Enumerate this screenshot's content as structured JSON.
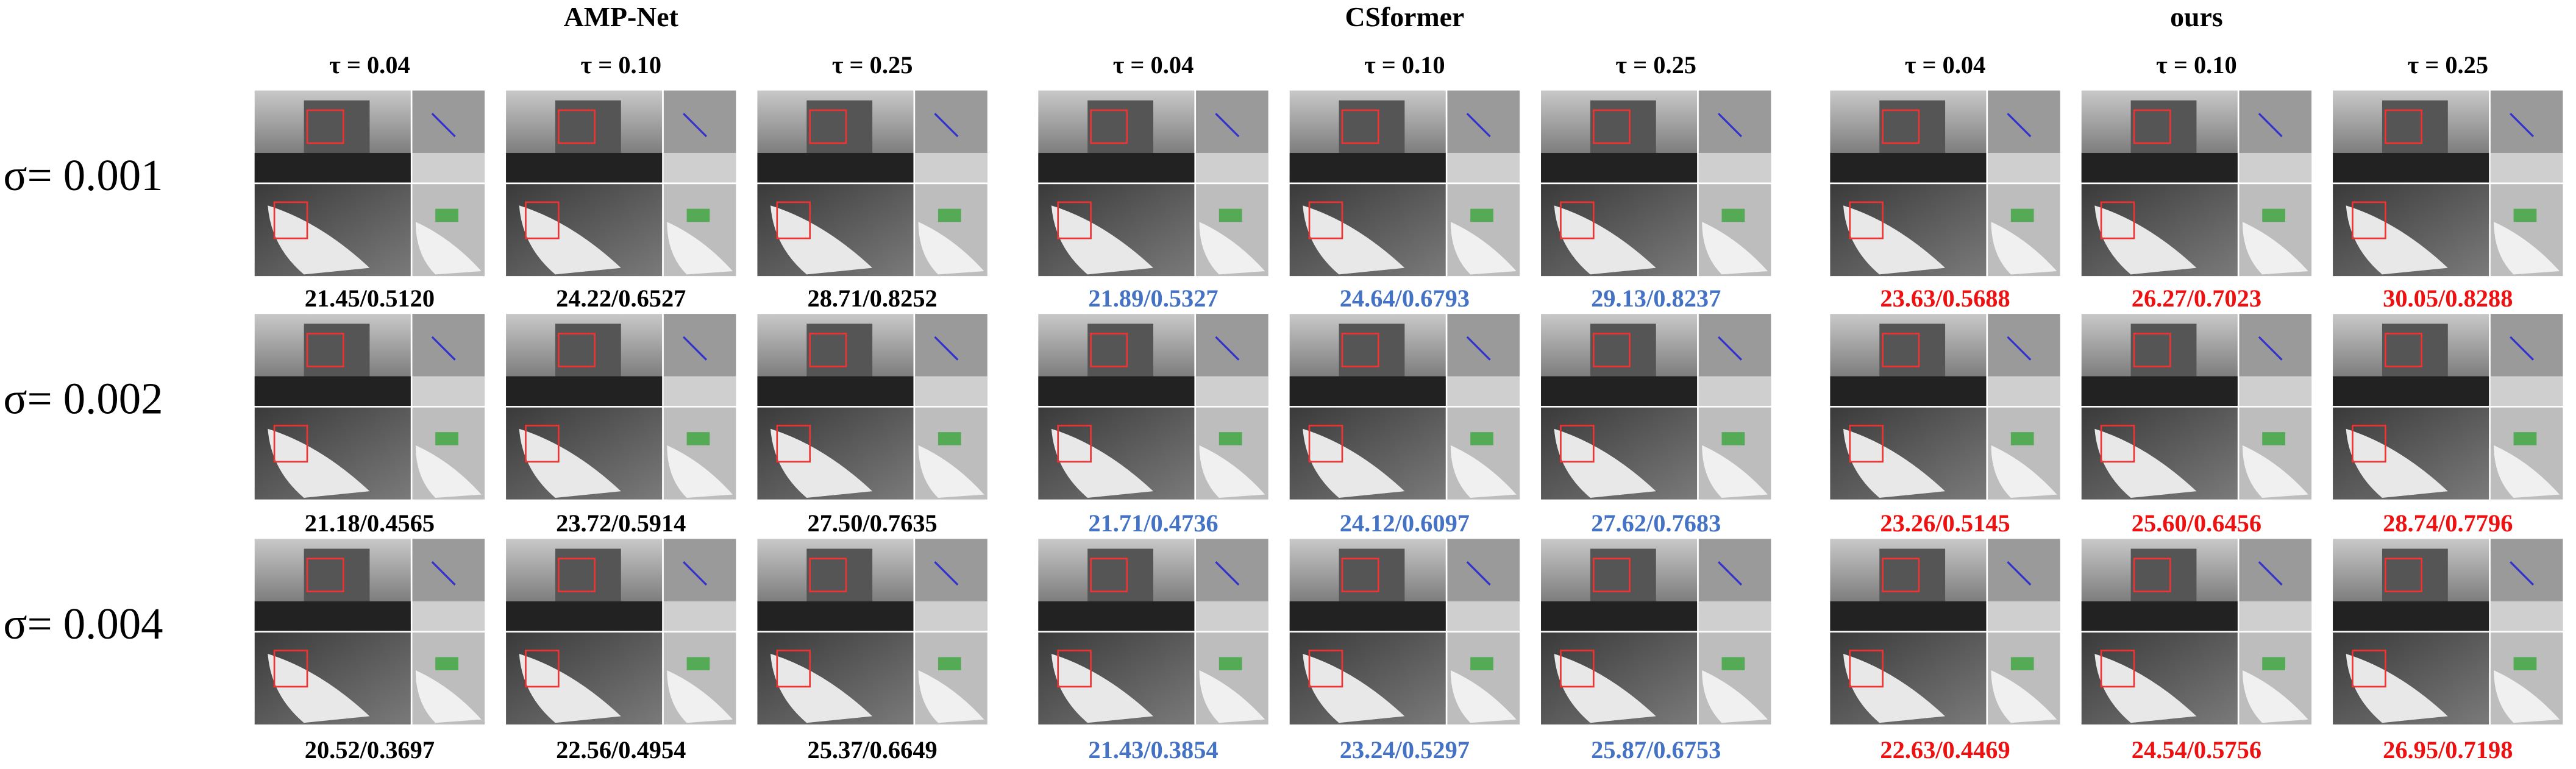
{
  "sigmas": [
    "σ= 0.001",
    "σ= 0.002",
    "σ= 0.004"
  ],
  "methods": [
    {
      "name": "AMP-Net",
      "color": "#000000",
      "taus": [
        "τ = 0.04",
        "τ = 0.10",
        "τ = 0.25"
      ],
      "rows": [
        [
          "21.45/0.5120",
          "24.22/0.6527",
          "28.71/0.8252"
        ],
        [
          "21.18/0.4565",
          "23.72/0.5914",
          "27.50/0.7635"
        ],
        [
          "20.52/0.3697",
          "22.56/0.4954",
          "25.37/0.6649"
        ]
      ]
    },
    {
      "name": "CSformer",
      "color": "#4472c4",
      "taus": [
        "τ = 0.04",
        "τ = 0.10",
        "τ = 0.25"
      ],
      "rows": [
        [
          "21.89/0.5327",
          "24.64/0.6793",
          "29.13/0.8237"
        ],
        [
          "21.71/0.4736",
          "24.12/0.6097",
          "27.62/0.7683"
        ],
        [
          "21.43/0.3854",
          "23.24/0.5297",
          "25.87/0.6753"
        ]
      ]
    },
    {
      "name": "ours",
      "color": "#ee1111",
      "taus": [
        "τ = 0.04",
        "τ = 0.10",
        "τ = 0.25"
      ],
      "rows": [
        [
          "23.63/0.5688",
          "26.27/0.7023",
          "30.05/0.8288"
        ],
        [
          "23.26/0.5145",
          "25.60/0.6456",
          "28.74/0.7796"
        ],
        [
          "22.63/0.4469",
          "24.54/0.5756",
          "26.95/0.7198"
        ]
      ]
    }
  ]
}
